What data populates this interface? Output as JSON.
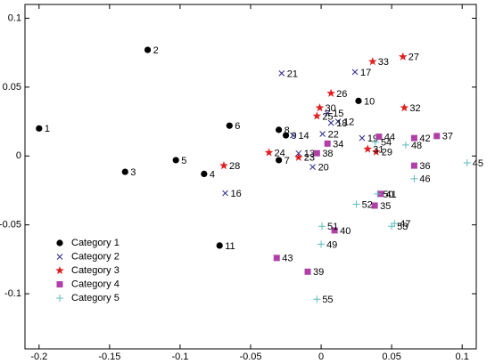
{
  "chart_data": {
    "type": "scatter",
    "xlim": [
      -0.21,
      0.11
    ],
    "ylim": [
      -0.14,
      0.11
    ],
    "xticks": [
      -0.2,
      -0.15,
      -0.1,
      -0.05,
      0,
      0.05,
      0.1
    ],
    "yticks": [
      -0.1,
      -0.05,
      0,
      0.05,
      0.1
    ],
    "grid": false,
    "legend": "lower left",
    "series": [
      {
        "name": "Category 1",
        "color": "#000000",
        "marker": "circle",
        "labels": [
          1,
          2,
          3,
          4,
          5,
          6,
          7,
          8,
          9,
          10,
          11
        ],
        "x": [
          -0.2,
          -0.123,
          -0.139,
          -0.083,
          -0.103,
          -0.065,
          -0.03,
          -0.03,
          -0.025,
          0.0265,
          -0.072
        ],
        "values": [
          0.02,
          0.077,
          -0.0115,
          -0.013,
          -0.003,
          0.022,
          -0.003,
          0.019,
          0.015,
          0.04,
          -0.065
        ]
      },
      {
        "name": "Category 2",
        "color": "#2a2a8a",
        "marker": "x",
        "labels": [
          12,
          13,
          14,
          15,
          16,
          17,
          18,
          19,
          20,
          21,
          22
        ],
        "x": [
          0.012,
          -0.016,
          -0.02,
          0.0045,
          -0.068,
          0.024,
          0.007,
          0.029,
          -0.006,
          -0.028,
          0.001
        ],
        "values": [
          0.025,
          0.002,
          0.015,
          0.031,
          -0.027,
          0.061,
          0.024,
          0.013,
          -0.008,
          0.06,
          0.016
        ]
      },
      {
        "name": "Category 3",
        "color": "#e02020",
        "marker": "star",
        "labels": [
          23,
          24,
          25,
          26,
          27,
          28,
          29,
          30,
          31,
          32,
          33
        ],
        "x": [
          -0.016,
          -0.037,
          -0.003,
          0.007,
          0.058,
          -0.069,
          0.039,
          -0.001,
          0.033,
          0.059,
          0.0365
        ],
        "values": [
          -0.001,
          0.0025,
          0.029,
          0.0455,
          0.072,
          -0.007,
          0.003,
          0.035,
          0.005,
          0.035,
          0.0685
        ]
      },
      {
        "name": "Category 4",
        "color": "#b040a8",
        "marker": "square",
        "labels": [
          34,
          35,
          36,
          37,
          38,
          39,
          40,
          41,
          42,
          43,
          44
        ],
        "x": [
          0.0045,
          0.038,
          0.066,
          0.082,
          -0.003,
          -0.0095,
          0.0095,
          0.042,
          0.066,
          -0.0315,
          0.041
        ],
        "values": [
          0.009,
          -0.036,
          -0.007,
          0.0145,
          0.002,
          -0.084,
          -0.054,
          -0.0275,
          0.013,
          -0.074,
          0.014
        ]
      },
      {
        "name": "Category 5",
        "color": "#5cbcc0",
        "marker": "plus",
        "labels": [
          45,
          46,
          47,
          48,
          49,
          50,
          51,
          52,
          53,
          54,
          55
        ],
        "x": [
          0.1035,
          0.066,
          0.052,
          0.06,
          0,
          0.04,
          0.0006,
          0.025,
          0.05,
          0.0385,
          -0.003
        ],
        "values": [
          -0.005,
          -0.0165,
          -0.049,
          0.008,
          -0.064,
          -0.0275,
          -0.051,
          -0.035,
          -0.051,
          0.01,
          -0.104
        ]
      }
    ]
  }
}
